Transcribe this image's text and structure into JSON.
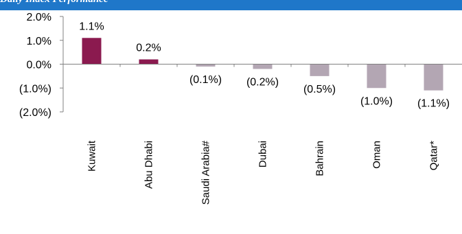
{
  "banner": {
    "text": "Daily Index Performance",
    "color": "#1f77c9"
  },
  "chart_data": {
    "type": "bar",
    "categories": [
      "Kuwait",
      "Abu Dhabi",
      "Saudi Arabia#",
      "Dubai",
      "Bahrain",
      "Oman",
      "Qatar*"
    ],
    "values": [
      1.1,
      0.2,
      -0.1,
      -0.2,
      -0.5,
      -1.0,
      -1.1
    ],
    "data_labels": [
      "1.1%",
      "0.2%",
      "(0.1%)",
      "(0.2%)",
      "(0.5%)",
      "(1.0%)",
      "(1.1%)"
    ],
    "ylim": [
      -2.0,
      2.0
    ],
    "y_ticks": [
      2.0,
      1.0,
      0.0,
      -1.0,
      -2.0
    ],
    "y_tick_labels": [
      "2.0%",
      "1.0%",
      "0.0%",
      "(1.0%)",
      "(2.0%)"
    ],
    "grid": false,
    "positive_color": "#8b1a4f",
    "negative_color": "#b3a6b3"
  }
}
